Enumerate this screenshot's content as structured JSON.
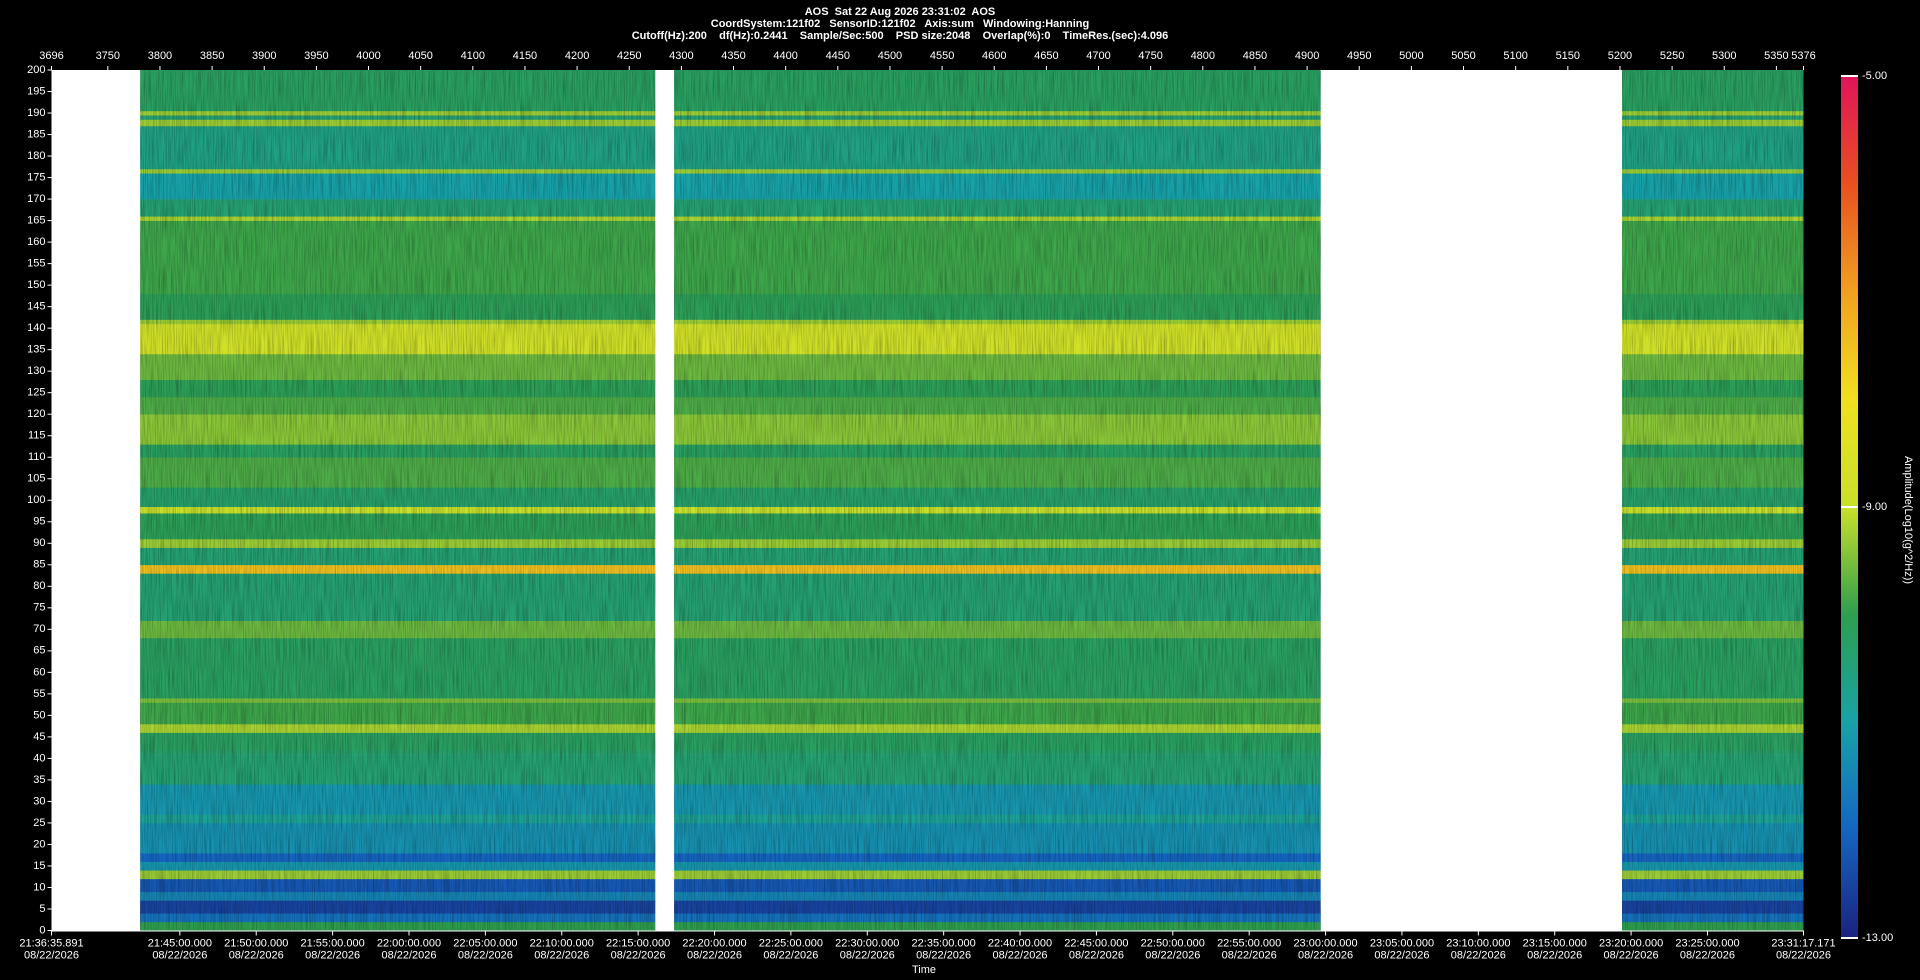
{
  "chart_data": {
    "type": "spectrogram",
    "title": "AOS  Sat 22 Aug 2026 23:31:02  AOS",
    "subtitle": [
      "CoordSystem:121f02   SensorID:121f02   Axis:sum   Windowing:Hanning",
      "Cutoff(Hz):200    df(Hz):0.2441    Sample/Sec:500    PSD size:2048    Overlap(%):0    TimeRes.(sec):4.096"
    ],
    "xlabel": "Time",
    "xlim": [
      3696,
      5376
    ],
    "xticks": [
      3696,
      3750,
      3800,
      3850,
      3900,
      3950,
      4000,
      4050,
      4100,
      4150,
      4200,
      4250,
      4300,
      4350,
      4400,
      4450,
      4500,
      4550,
      4600,
      4650,
      4700,
      4750,
      4800,
      4850,
      4900,
      4950,
      5000,
      5050,
      5100,
      5150,
      5200,
      5250,
      5300,
      5350,
      5376
    ],
    "time_ticks": [
      {
        "value": 3696,
        "label": "21:36:35.891",
        "date": "08/22/2026"
      },
      {
        "value": 3819.07,
        "label": "21:45:00.000",
        "date": "08/22/2026"
      },
      {
        "value": 3892.32,
        "label": "21:50:00.000",
        "date": "08/22/2026"
      },
      {
        "value": 3965.56,
        "label": "21:55:00.000",
        "date": "08/22/2026"
      },
      {
        "value": 4038.8,
        "label": "22:00:00.000",
        "date": "08/22/2026"
      },
      {
        "value": 4112.04,
        "label": "22:05:00.000",
        "date": "08/22/2026"
      },
      {
        "value": 4185.28,
        "label": "22:10:00.000",
        "date": "08/22/2026"
      },
      {
        "value": 4258.53,
        "label": "22:15:00.000",
        "date": "08/22/2026"
      },
      {
        "value": 4331.77,
        "label": "22:20:00.000",
        "date": "08/22/2026"
      },
      {
        "value": 4405.01,
        "label": "22:25:00.000",
        "date": "08/22/2026"
      },
      {
        "value": 4478.25,
        "label": "22:30:00.000",
        "date": "08/22/2026"
      },
      {
        "value": 4551.49,
        "label": "22:35:00.000",
        "date": "08/22/2026"
      },
      {
        "value": 4624.74,
        "label": "22:40:00.000",
        "date": "08/22/2026"
      },
      {
        "value": 4697.98,
        "label": "22:45:00.000",
        "date": "08/22/2026"
      },
      {
        "value": 4771.22,
        "label": "22:50:00.000",
        "date": "08/22/2026"
      },
      {
        "value": 4844.46,
        "label": "22:55:00.000",
        "date": "08/22/2026"
      },
      {
        "value": 4917.7,
        "label": "23:00:00.000",
        "date": "08/22/2026"
      },
      {
        "value": 4990.95,
        "label": "23:05:00.000",
        "date": "08/22/2026"
      },
      {
        "value": 5064.19,
        "label": "23:10:00.000",
        "date": "08/22/2026"
      },
      {
        "value": 5137.43,
        "label": "23:15:00.000",
        "date": "08/22/2026"
      },
      {
        "value": 5210.67,
        "label": "23:20:00.000",
        "date": "08/22/2026"
      },
      {
        "value": 5283.91,
        "label": "23:25:00.000",
        "date": "08/22/2026"
      },
      {
        "value": 5376,
        "label": "23:31:17.171",
        "date": "08/22/2026"
      }
    ],
    "ylim": [
      0,
      200
    ],
    "yticks": [
      0,
      5,
      10,
      15,
      20,
      25,
      30,
      35,
      40,
      45,
      50,
      55,
      60,
      65,
      70,
      75,
      80,
      85,
      90,
      95,
      100,
      105,
      110,
      115,
      120,
      125,
      130,
      135,
      140,
      145,
      150,
      155,
      160,
      165,
      170,
      175,
      180,
      185,
      190,
      195,
      200
    ],
    "segments": [
      [
        3781,
        4275
      ],
      [
        4293,
        4913
      ],
      [
        5202,
        5376
      ]
    ],
    "frequency_edges": [
      0,
      2,
      4,
      7,
      9,
      12,
      14,
      16,
      18,
      25,
      27,
      34,
      41,
      42,
      46,
      48,
      53,
      54,
      68,
      72,
      83,
      85,
      89,
      91,
      97,
      98.5,
      103,
      110,
      113,
      120,
      124,
      128,
      134,
      141,
      142,
      148,
      165,
      166,
      170,
      176,
      177,
      187,
      188.5,
      189.5,
      190.5,
      200
    ],
    "amplitude": [
      -10.0,
      -11.8,
      -12.5,
      -11.5,
      -12.2,
      -9.3,
      -11.2,
      -12.0,
      -11.3,
      -10.8,
      -11.2,
      -10.4,
      -10.3,
      -10.2,
      -9.2,
      -9.9,
      -9.5,
      -10.2,
      -9.6,
      -10.4,
      -7.5,
      -10.4,
      -9.3,
      -10.1,
      -9.0,
      -10.3,
      -9.8,
      -10.2,
      -9.4,
      -9.8,
      -10.1,
      -9.6,
      -8.8,
      -9.3,
      -10.1,
      -9.9,
      -9.2,
      -10.4,
      -11.0,
      -9.3,
      -10.6,
      -9.3,
      -10.4,
      -9.3,
      -10.2
    ],
    "colorbar": {
      "label": "Amplitude(Log10(g^2/Hz))",
      "clim": [
        -13,
        -5
      ],
      "ticks": [
        {
          "value": -5,
          "label": "-5.00"
        },
        {
          "value": -9,
          "label": "-9.00"
        },
        {
          "value": -13,
          "label": "-13.00"
        }
      ],
      "colormap": [
        "#1a237e",
        "#1565c0",
        "#17a2a8",
        "#2e9e4e",
        "#c8e02a",
        "#f0e020",
        "#f0a020",
        "#e85020",
        "#e0145a"
      ]
    }
  }
}
